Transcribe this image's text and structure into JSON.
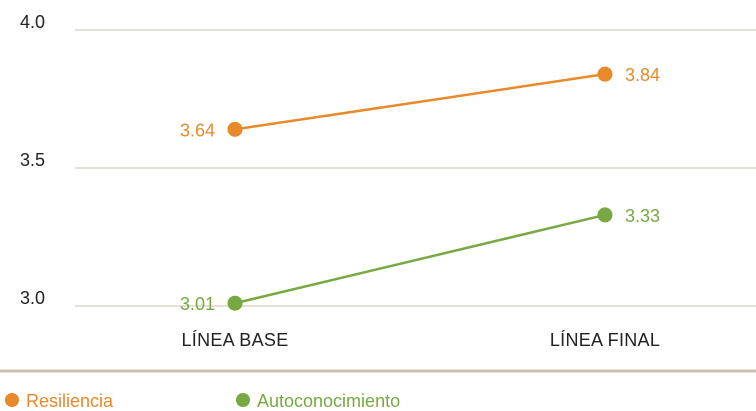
{
  "chart_data": {
    "type": "line",
    "title": "",
    "xlabel": "",
    "ylabel": "",
    "categories": [
      "LÍNEA BASE",
      "LÍNEA FINAL"
    ],
    "ylim": [
      3.0,
      4.0
    ],
    "yticks": [
      "3.0",
      "3.5",
      "4.0"
    ],
    "grid": true,
    "legend_position": "bottom-left",
    "series": [
      {
        "name": "Resiliencia",
        "values": [
          3.64,
          3.84
        ],
        "labels": [
          "3.64",
          "3.84"
        ],
        "color": "#E8892B"
      },
      {
        "name": "Autoconocimiento",
        "values": [
          3.01,
          3.33
        ],
        "labels": [
          "3.01",
          "3.33"
        ],
        "color": "#78A842"
      }
    ]
  }
}
